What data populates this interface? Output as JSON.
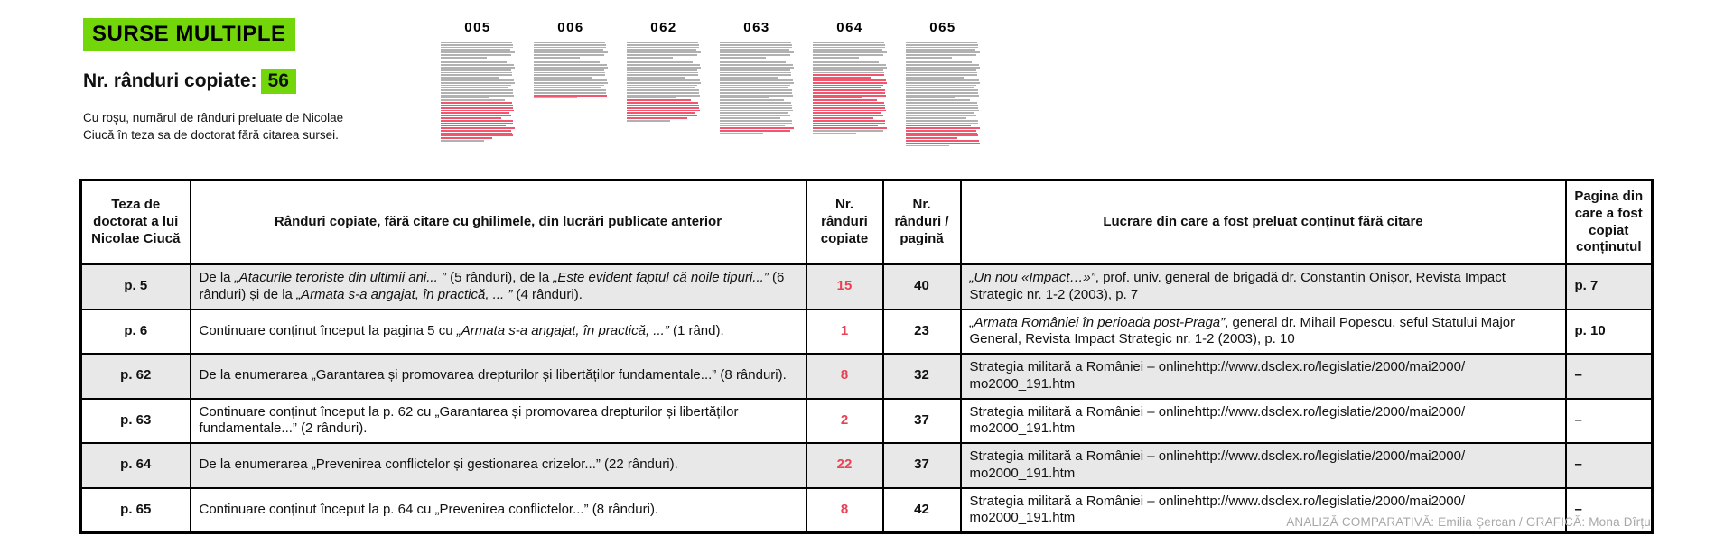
{
  "header": {
    "title": "SURSE MULTIPLE",
    "copied_label": "Nr. rânduri copiate:",
    "copied_value": "56",
    "caption": "Cu roșu, numărul de rânduri preluate de Nicolae Ciucă în teza sa de doctorat fără citarea sursei."
  },
  "colors": {
    "accent_green": "#73d60a",
    "accent_red": "#e94155",
    "line_gray": "#b1b1b1",
    "line_red": "#f0566d",
    "row_stripe": "#e8e8e8"
  },
  "pages": [
    {
      "label": "005",
      "lines": 40,
      "red_from": 25,
      "red_to": 39
    },
    {
      "label": "006",
      "lines": 23,
      "red_from": 22,
      "red_to": 22
    },
    {
      "label": "062",
      "lines": 32,
      "red_from": 24,
      "red_to": 31
    },
    {
      "label": "063",
      "lines": 37,
      "red_from": 35,
      "red_to": 36
    },
    {
      "label": "064",
      "lines": 37,
      "red_from": 14,
      "red_to": 35
    },
    {
      "label": "065",
      "lines": 42,
      "red_from": 34,
      "red_to": 41
    }
  ],
  "table": {
    "headers": [
      "Teza de doctorat a lui Nicolae Ciucă",
      "Rânduri copiate, fără citare cu ghilimele, din lucrări publicate anterior",
      "Nr. rânduri copiate",
      "Nr. rânduri / pagină",
      "Lucrare din care a fost preluat conținut fără citare",
      "Pagina din care a fost copiat conținutul"
    ],
    "rows": [
      {
        "page": "p. 5",
        "desc": [
          {
            "t": "De la ",
            "i": false
          },
          {
            "t": "„Atacurile teroriste din ultimii ani... ”",
            "i": true
          },
          {
            "t": " (5 rânduri), de la ",
            "i": false
          },
          {
            "t": "„Este evident faptul că noile tipuri...”",
            "i": true
          },
          {
            "t": " (6 rânduri) și de la ",
            "i": false
          },
          {
            "t": "„Armata s-a angajat, în practică, ... ”",
            "i": true
          },
          {
            "t": " (4 rânduri).",
            "i": false
          }
        ],
        "copied": "15",
        "per_page": "40",
        "source": [
          {
            "t": "„Un nou «Impact…»”",
            "i": true
          },
          {
            "t": ", prof. univ. general de brigadă dr. Constantin Onișor, Revista Impact Strategic nr. 1-2 (2003), p. 7",
            "i": false
          }
        ],
        "source_page": "p. 7"
      },
      {
        "page": "p. 6",
        "desc": [
          {
            "t": "Continuare conținut început la pagina 5 cu ",
            "i": false
          },
          {
            "t": "„Armata s-a angajat, în practică, ...”",
            "i": true
          },
          {
            "t": " (1 rând).",
            "i": false
          }
        ],
        "copied": "1",
        "per_page": "23",
        "source": [
          {
            "t": "„Armata României în perioada post-Praga”",
            "i": true
          },
          {
            "t": ", general dr. Mihail Popescu, șeful Statului Major General, Revista Impact Strategic nr. 1-2 (2003), p. 10",
            "i": false
          }
        ],
        "source_page": "p. 10"
      },
      {
        "page": "p. 62",
        "desc": [
          {
            "t": "De la enumerarea „Garantarea și promovarea drepturilor și libertăților fundamentale...” (8 rânduri).",
            "i": false
          }
        ],
        "copied": "8",
        "per_page": "32",
        "source": [
          {
            "t": "Strategia militară a României – onlinehttp://www.dsclex.ro/legislatie/2000/mai2000/",
            "i": false
          },
          {
            "br": true
          },
          {
            "t": "mo2000_191.htm",
            "i": false
          }
        ],
        "source_page": "–"
      },
      {
        "page": "p. 63",
        "desc": [
          {
            "t": "Continuare conținut început la p. 62 cu „Garantarea și promovarea drepturilor și libertăților fundamentale...” (2 rânduri).",
            "i": false
          }
        ],
        "copied": "2",
        "per_page": "37",
        "source": [
          {
            "t": "Strategia militară a României – onlinehttp://www.dsclex.ro/legislatie/2000/mai2000/",
            "i": false
          },
          {
            "br": true
          },
          {
            "t": "mo2000_191.htm",
            "i": false
          }
        ],
        "source_page": "–"
      },
      {
        "page": "p. 64",
        "desc": [
          {
            "t": "De la enumerarea „Prevenirea conflictelor și gestionarea crizelor...” (22 rânduri).",
            "i": false
          }
        ],
        "copied": "22",
        "per_page": "37",
        "source": [
          {
            "t": "Strategia militară a României – onlinehttp://www.dsclex.ro/legislatie/2000/mai2000/",
            "i": false
          },
          {
            "br": true
          },
          {
            "t": "mo2000_191.htm",
            "i": false
          }
        ],
        "source_page": "–"
      },
      {
        "page": "p. 65",
        "desc": [
          {
            "t": "Continuare conținut început la p. 64 cu „Prevenirea conflictelor...” (8 rânduri).",
            "i": false
          }
        ],
        "copied": "8",
        "per_page": "42",
        "source": [
          {
            "t": "Strategia militară a României – onlinehttp://www.dsclex.ro/legislatie/2000/mai2000/",
            "i": false
          },
          {
            "br": true
          },
          {
            "t": "mo2000_191.htm",
            "i": false
          }
        ],
        "source_page": "–"
      }
    ]
  },
  "footer": {
    "credit": "ANALIZĂ COMPARATIVĂ: Emilia Șercan / GRAFICĂ: Mona Dîrțu"
  },
  "chart_data": {
    "type": "bar",
    "title": "SURSE MULTIPLE",
    "subtitle": "Nr. rânduri copiate: 56",
    "categories": [
      "005",
      "006",
      "062",
      "063",
      "064",
      "065"
    ],
    "series": [
      {
        "name": "Nr. rânduri copiate (roșu)",
        "values": [
          15,
          1,
          8,
          2,
          22,
          8
        ]
      },
      {
        "name": "Nr. rânduri / pagină (total)",
        "values": [
          40,
          23,
          32,
          37,
          37,
          42
        ]
      }
    ],
    "annotations": "Cu roșu, numărul de rânduri preluate de Nicolae Ciucă în teza sa de doctorat fără citarea sursei.",
    "total_copied_lines": 56
  }
}
